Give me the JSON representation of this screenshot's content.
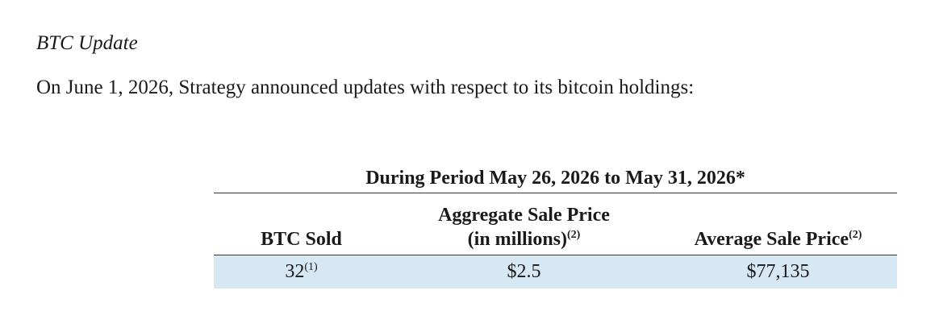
{
  "section_heading": "BTC Update",
  "intro_text": "On June 1, 2026, Strategy announced updates with respect to its bitcoin holdings:",
  "table": {
    "period_header": "During Period May 26, 2026 to May 31, 2026*",
    "columns": {
      "btc_sold": {
        "label": "BTC Sold"
      },
      "aggregate_sale_price": {
        "label_line1": "Aggregate Sale Price",
        "label_line2": "(in millions)",
        "footnote": "(2)"
      },
      "average_sale_price": {
        "label": "Average Sale Price",
        "footnote": "(2)"
      }
    },
    "row": {
      "btc_sold": "32",
      "btc_sold_footnote": "(1)",
      "aggregate_sale_price": "$2.5",
      "average_sale_price": "$77,135"
    },
    "row_background": "#d6e8f3"
  }
}
